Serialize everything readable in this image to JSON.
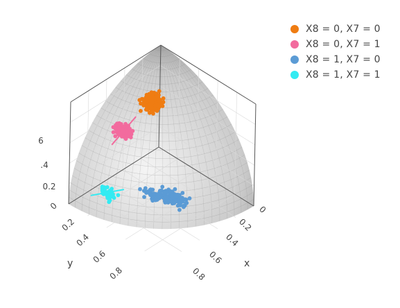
{
  "chart_data": {
    "type": "scatter3d",
    "axes": {
      "x": {
        "title": "x",
        "ticks": [
          "0",
          "0.2",
          "0.4",
          "0.6",
          "0.8"
        ]
      },
      "y": {
        "title": "y",
        "ticks": [
          "0",
          "0.2",
          "0.4",
          "0.6",
          "0.8"
        ]
      },
      "z": {
        "title": "",
        "ticks": [
          "0.2",
          "0.4",
          "0.6"
        ],
        "tick_display": [
          "0.2",
          ".4",
          "6"
        ]
      }
    },
    "surface": {
      "shape": "spherical cap",
      "color": "#a0a0a0",
      "opacity": 0.35
    },
    "legend": {
      "position": "top-right"
    },
    "series": [
      {
        "name": "X8 = 0, X7 = 0",
        "color": "#ef7c12",
        "cluster": {
          "center": [
            0.13,
            0.22,
            0.64
          ],
          "axis": [
            0.1,
            0.06,
            0.09
          ],
          "spread": 0.03,
          "count": 230
        },
        "fit_line": [
          [
            0.04,
            0.16,
            0.56
          ],
          [
            0.22,
            0.28,
            0.72
          ]
        ]
      },
      {
        "name": "X8 = 0, X7 = 1",
        "color": "#f26b9e",
        "cluster": {
          "center": [
            0.05,
            0.45,
            0.44
          ],
          "axis": [
            0.03,
            0.1,
            0.1
          ],
          "spread": 0.025,
          "count": 90
        },
        "fit_line": [
          [
            0.02,
            0.55,
            0.34
          ],
          [
            0.08,
            0.35,
            0.54
          ]
        ]
      },
      {
        "name": "X8 = 1, X7 = 0",
        "color": "#5b9bd5",
        "cluster": {
          "center": [
            0.48,
            0.44,
            0.04
          ],
          "axis": [
            0.14,
            -0.05,
            0.0
          ],
          "spread": 0.035,
          "count": 130
        },
        "fit_line": [
          [
            0.34,
            0.49,
            0.04
          ],
          [
            0.62,
            0.39,
            0.04
          ]
        ]
      },
      {
        "name": "X8 = 1, X7 = 1",
        "color": "#33ebf2",
        "cluster": {
          "center": [
            0.16,
            0.74,
            0.06
          ],
          "axis": [
            0.06,
            0.05,
            0.02
          ],
          "spread": 0.025,
          "count": 50
        },
        "fit_line": [
          [
            0.08,
            0.84,
            0.04
          ],
          [
            0.24,
            0.64,
            0.08
          ]
        ]
      }
    ]
  }
}
